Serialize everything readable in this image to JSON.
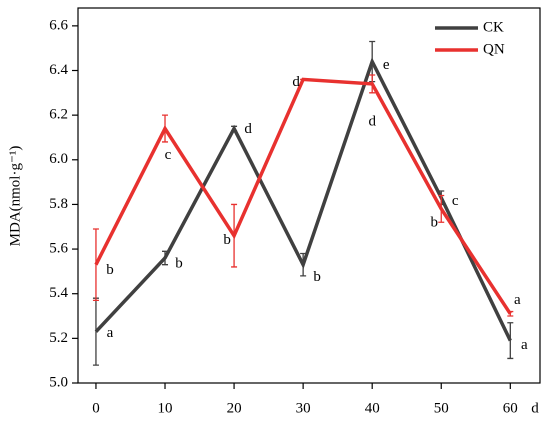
{
  "chart_data": {
    "type": "line",
    "x_label": "d",
    "y_label": "MDA(nmol·g⁻¹)",
    "x": [
      0,
      10,
      20,
      30,
      40,
      50,
      60
    ],
    "series": [
      {
        "name": "CK",
        "color": "#404040",
        "values": [
          5.23,
          5.56,
          6.14,
          5.53,
          6.44,
          5.83,
          5.19
        ],
        "errors": [
          0.15,
          0.03,
          0.01,
          0.05,
          0.09,
          0.03,
          0.08
        ],
        "letters": [
          "a",
          "b",
          "d",
          "b",
          "e",
          "c",
          "a"
        ]
      },
      {
        "name": "QN",
        "color": "#e8312f",
        "values": [
          5.53,
          6.14,
          5.66,
          6.36,
          6.34,
          5.78,
          5.31
        ],
        "errors": [
          0.16,
          0.06,
          0.14,
          0.0,
          0.04,
          0.06,
          0.01
        ],
        "letters": [
          "b",
          "c",
          "b",
          "d",
          "d",
          "b",
          "a"
        ]
      }
    ],
    "xlim": [
      -2.6,
      64.3
    ],
    "ylim": [
      5.0,
      6.68
    ],
    "xticks": [
      0,
      10,
      20,
      30,
      40,
      50,
      60
    ],
    "yticks": [
      {
        "value": 5.0,
        "label": "5.0"
      },
      5.2,
      5.4,
      5.6,
      5.8,
      {
        "value": 6.0,
        "label": "6.0"
      },
      6.2,
      6.4,
      6.6
    ],
    "legend": "upper right"
  }
}
